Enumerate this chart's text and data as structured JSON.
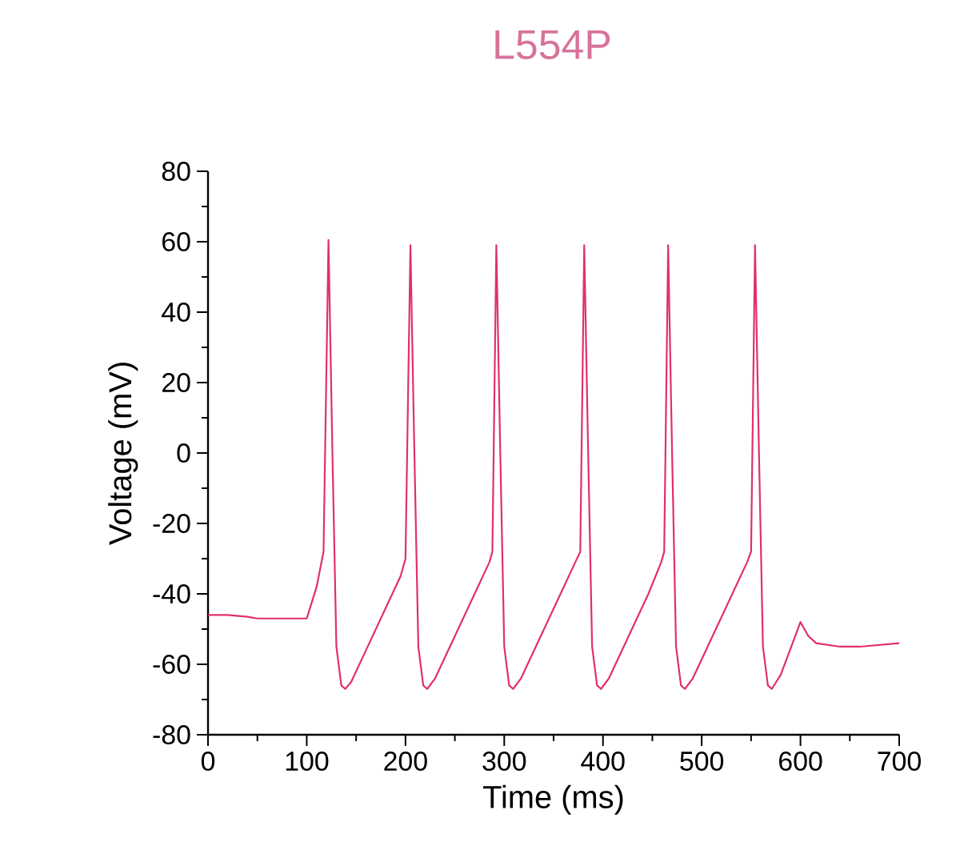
{
  "chart_data": {
    "type": "line",
    "title": "L554P",
    "xlabel": "Time (ms)",
    "ylabel": "Voltage (mV)",
    "xlim": [
      0,
      700
    ],
    "xticks": [
      0,
      100,
      200,
      300,
      400,
      500,
      600,
      700
    ],
    "ylim": [
      -80,
      80
    ],
    "yticks": [
      -80,
      -60,
      -40,
      -20,
      0,
      20,
      40,
      60,
      80
    ],
    "marker": "none",
    "line_style": "solid",
    "series": [
      {
        "color": "#e0306a",
        "x": [
          0,
          20,
          40,
          50,
          100,
          110,
          117,
          122,
          126,
          130,
          135,
          139,
          145,
          160,
          180,
          195,
          200,
          205,
          209,
          213,
          218,
          222,
          230,
          250,
          270,
          285,
          288,
          292,
          296,
          300,
          305,
          309,
          317,
          337,
          357,
          372,
          377,
          381,
          385,
          389,
          394,
          398,
          406,
          426,
          446,
          459,
          462,
          466,
          470,
          474,
          479,
          483,
          491,
          511,
          531,
          546,
          550,
          554,
          558,
          562,
          567,
          571,
          580,
          592,
          600,
          608,
          616,
          640,
          660,
          700
        ],
        "values": [
          -46,
          -46,
          -46.5,
          -47,
          -47,
          -38,
          -28,
          60.5,
          0,
          -55,
          -66,
          -67,
          -65,
          -56,
          -44,
          -35,
          -30,
          59,
          0,
          -55,
          -66,
          -67,
          -64,
          -52,
          -40,
          -31,
          -28,
          59,
          0,
          -55,
          -66,
          -67,
          -64,
          -52,
          -40,
          -31,
          -28,
          59,
          0,
          -55,
          -66,
          -67,
          -64,
          -52,
          -40,
          -31,
          -28,
          59,
          0,
          -55,
          -66,
          -67,
          -64,
          -52,
          -40,
          -31,
          -28,
          59,
          0,
          -55,
          -66,
          -67,
          -63,
          -54,
          -48,
          -52,
          -54,
          -55,
          -55,
          -54
        ]
      }
    ]
  }
}
